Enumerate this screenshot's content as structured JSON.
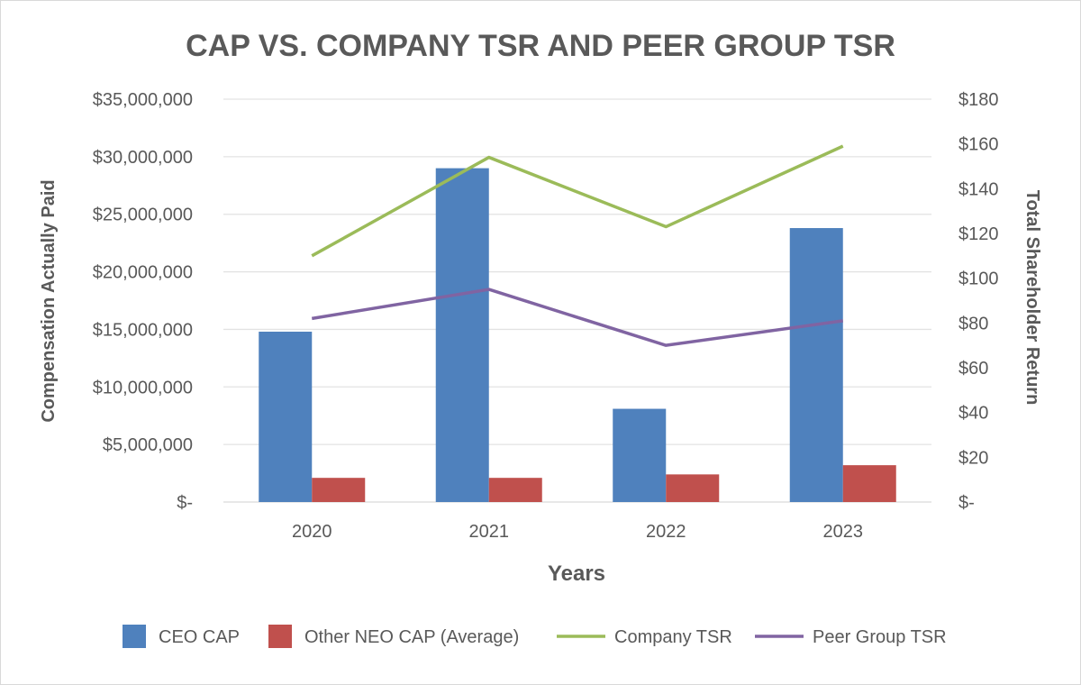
{
  "chart_data": {
    "type": "bar",
    "title": "CAP VS. COMPANY TSR AND PEER GROUP TSR",
    "xlabel": "Years",
    "ylabel": "Compensation Actually Paid",
    "y2label": "Total Shareholder Return",
    "categories": [
      "2020",
      "2021",
      "2022",
      "2023"
    ],
    "ylim": [
      0,
      35000000
    ],
    "y2lim": [
      0,
      180
    ],
    "y_ticks": [
      {
        "value": 0,
        "label": "$-"
      },
      {
        "value": 5000000,
        "label": "$5,000,000"
      },
      {
        "value": 10000000,
        "label": "$10,000,000"
      },
      {
        "value": 15000000,
        "label": "$15,000,000"
      },
      {
        "value": 20000000,
        "label": "$20,000,000"
      },
      {
        "value": 25000000,
        "label": "$25,000,000"
      },
      {
        "value": 30000000,
        "label": "$30,000,000"
      },
      {
        "value": 35000000,
        "label": "$35,000,000"
      }
    ],
    "y2_ticks": [
      {
        "value": 0,
        "label": "$-"
      },
      {
        "value": 20,
        "label": "$20"
      },
      {
        "value": 40,
        "label": "$40"
      },
      {
        "value": 60,
        "label": "$60"
      },
      {
        "value": 80,
        "label": "$80"
      },
      {
        "value": 100,
        "label": "$100"
      },
      {
        "value": 120,
        "label": "$120"
      },
      {
        "value": 140,
        "label": "$140"
      },
      {
        "value": 160,
        "label": "$160"
      },
      {
        "value": 180,
        "label": "$180"
      }
    ],
    "grid": true,
    "legend_position": "bottom",
    "bar_series": [
      {
        "name": "CEO CAP",
        "color": "#4f81bd",
        "values": [
          14800000,
          29000000,
          8100000,
          23800000
        ]
      },
      {
        "name": "Other NEO CAP (Average)",
        "color": "#c0504d",
        "values": [
          2100000,
          2100000,
          2400000,
          3200000
        ]
      }
    ],
    "line_series": [
      {
        "name": "Company TSR",
        "color": "#9bbb59",
        "axis": "right",
        "values": [
          110,
          154,
          123,
          159
        ]
      },
      {
        "name": "Peer Group TSR",
        "color": "#8064a2",
        "axis": "right",
        "values": [
          82,
          95,
          70,
          81
        ]
      }
    ]
  }
}
